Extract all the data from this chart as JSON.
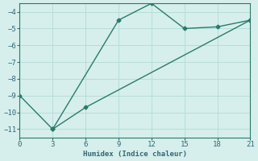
{
  "line1_x": [
    3,
    9,
    12,
    15,
    18,
    21
  ],
  "line1_y": [
    -11,
    -4.5,
    -3.5,
    -5.0,
    -4.9,
    -4.5
  ],
  "line2_x": [
    0,
    3,
    6,
    21
  ],
  "line2_y": [
    -9,
    -11,
    -9.7,
    -4.5
  ],
  "color": "#2a7a6a",
  "bg_color": "#d6efec",
  "grid_color": "#b8ddd9",
  "xlabel": "Humidex (Indice chaleur)",
  "xlim": [
    0,
    21
  ],
  "ylim": [
    -11.5,
    -3.5
  ],
  "yticks": [
    -11,
    -10,
    -9,
    -8,
    -7,
    -6,
    -5,
    -4
  ],
  "xticks": [
    0,
    3,
    6,
    9,
    12,
    15,
    18,
    21
  ],
  "font_color": "#336677",
  "marker": "D",
  "markersize": 2.5,
  "linewidth": 1.0
}
